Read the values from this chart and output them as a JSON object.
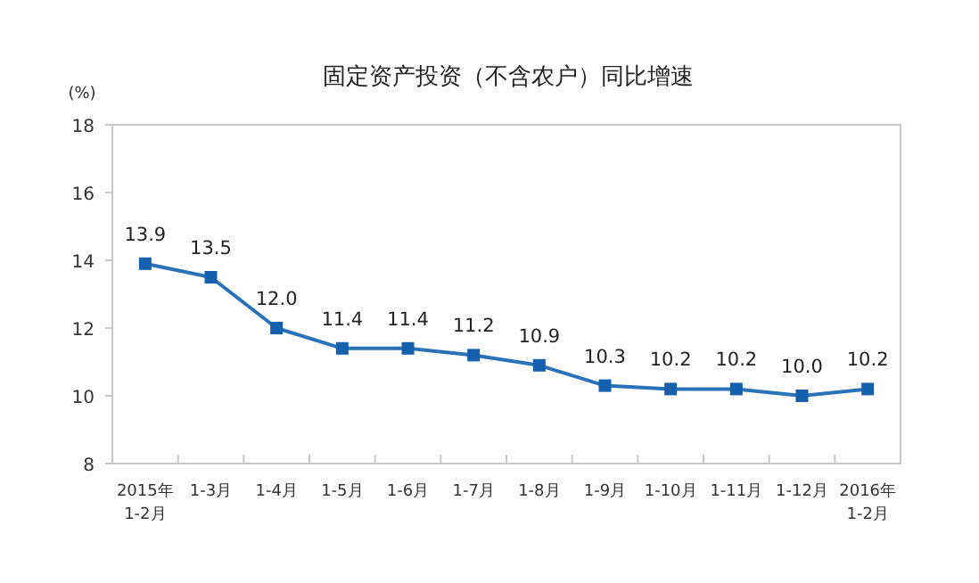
{
  "chart_data": {
    "type": "line",
    "title": "固定资产投资（不含农户）同比增速",
    "ylabel": "(%)",
    "categories": [
      "2015年 1-2月",
      "1-3月",
      "1-4月",
      "1-5月",
      "1-6月",
      "1-7月",
      "1-8月",
      "1-9月",
      "1-10月",
      "1-11月",
      "1-12月",
      "2016年 1-2月"
    ],
    "series": [
      {
        "color": "#2a72b8",
        "values": [
          13.9,
          13.5,
          12.0,
          11.4,
          11.4,
          11.2,
          10.9,
          10.3,
          10.2,
          10.2,
          10.0,
          10.2
        ],
        "value_labels": [
          "13.9",
          "13.5",
          "12.0",
          "11.4",
          "11.4",
          "11.2",
          "10.9",
          "10.3",
          "10.2",
          "10.2",
          "10.0",
          "10.2"
        ]
      }
    ],
    "ylim": [
      8,
      18
    ],
    "yticks": [
      8,
      10,
      12,
      14,
      16,
      18
    ],
    "marker": "square",
    "grid": false
  }
}
